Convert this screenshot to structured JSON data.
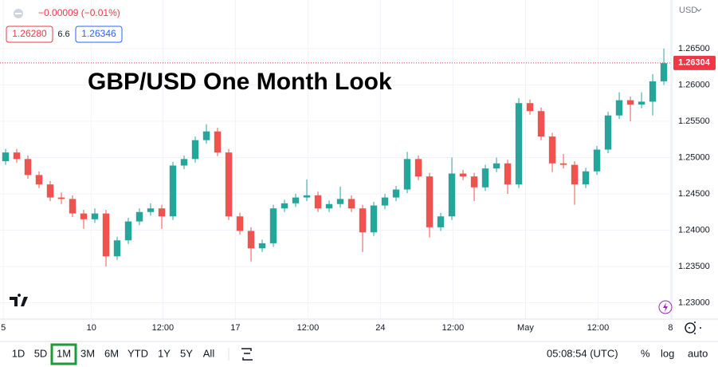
{
  "chart_data": {
    "type": "candlestick",
    "title": "GBP/USD One Month Look",
    "quote": {
      "change": "−0.00009 (−0.01%)",
      "bid": "1.26280",
      "spread": "6.6",
      "ask": "1.26346"
    },
    "currency": "USD",
    "last_price": 1.26304,
    "up_color": "#26a69a",
    "down_color": "#ef5350",
    "last_price_color": "#f23645",
    "grid": true,
    "log_scale": false,
    "x": [
      0,
      1,
      2,
      3,
      4,
      5,
      6,
      7,
      8,
      9,
      10,
      11,
      12,
      13,
      14,
      15,
      16,
      17,
      18,
      19,
      20,
      21,
      22,
      23,
      24,
      25,
      26,
      27,
      28,
      29,
      30,
      31,
      32,
      33,
      34,
      35,
      36,
      37,
      38,
      39,
      40,
      41,
      42,
      43,
      44,
      45,
      46,
      47,
      48,
      49,
      50,
      51,
      52,
      53,
      54,
      55,
      56,
      57,
      58,
      59
    ],
    "open": [
      1.2495,
      1.2507,
      1.2498,
      1.2476,
      1.2463,
      1.2445,
      1.2443,
      1.2423,
      1.2415,
      1.2423,
      1.2364,
      1.2386,
      1.2412,
      1.2425,
      1.243,
      1.2419,
      1.2489,
      1.2498,
      1.2524,
      1.2536,
      1.2507,
      1.2419,
      1.2399,
      1.2375,
      1.2382,
      1.243,
      1.2437,
      1.2445,
      1.2448,
      1.243,
      1.2436,
      1.2443,
      1.243,
      1.2397,
      1.2434,
      1.2445,
      1.2456,
      1.2498,
      1.2474,
      1.2404,
      1.2419,
      1.2478,
      1.2474,
      1.2459,
      1.2485,
      1.2492,
      1.2463,
      1.2575,
      1.2564,
      1.2529,
      1.2492,
      1.249,
      1.2463,
      1.2481,
      1.2511,
      1.2558,
      1.2579,
      1.2573,
      1.2577,
      1.2605
    ],
    "high": [
      1.2512,
      1.2512,
      1.2503,
      1.2481,
      1.2468,
      1.2452,
      1.2448,
      1.2428,
      1.243,
      1.2428,
      1.2391,
      1.2417,
      1.243,
      1.2437,
      1.2435,
      1.2494,
      1.2503,
      1.2529,
      1.2546,
      1.2541,
      1.2512,
      1.2424,
      1.2404,
      1.2387,
      1.2435,
      1.2442,
      1.245,
      1.247,
      1.2453,
      1.2441,
      1.246,
      1.2448,
      1.2435,
      1.2439,
      1.245,
      1.2461,
      1.2508,
      1.2503,
      1.2479,
      1.2424,
      1.25,
      1.2483,
      1.2479,
      1.249,
      1.25,
      1.2497,
      1.2582,
      1.258,
      1.2569,
      1.2534,
      1.2505,
      1.2495,
      1.2486,
      1.2516,
      1.2563,
      1.259,
      1.2584,
      1.259,
      1.2615,
      1.265
    ],
    "low": [
      1.249,
      1.2493,
      1.2471,
      1.2458,
      1.244,
      1.2436,
      1.2418,
      1.2402,
      1.241,
      1.235,
      1.2359,
      1.2381,
      1.2407,
      1.242,
      1.2402,
      1.2414,
      1.2484,
      1.2493,
      1.2519,
      1.2502,
      1.2414,
      1.2394,
      1.2357,
      1.237,
      1.2377,
      1.2425,
      1.2432,
      1.244,
      1.2425,
      1.2425,
      1.2431,
      1.2425,
      1.237,
      1.2392,
      1.2429,
      1.244,
      1.2451,
      1.2469,
      1.239,
      1.2399,
      1.2414,
      1.2469,
      1.244,
      1.2454,
      1.248,
      1.245,
      1.2458,
      1.2559,
      1.2524,
      1.248,
      1.2485,
      1.2435,
      1.2458,
      1.2476,
      1.2506,
      1.2553,
      1.255,
      1.2568,
      1.2558,
      1.26
    ],
    "close": [
      1.2507,
      1.2498,
      1.2476,
      1.2463,
      1.2445,
      1.2443,
      1.2423,
      1.2415,
      1.2423,
      1.2364,
      1.2386,
      1.2412,
      1.2425,
      1.243,
      1.2419,
      1.2489,
      1.2498,
      1.2524,
      1.2536,
      1.2507,
      1.2419,
      1.2399,
      1.2375,
      1.2382,
      1.243,
      1.2437,
      1.2445,
      1.2448,
      1.243,
      1.2436,
      1.2443,
      1.243,
      1.2397,
      1.2434,
      1.2445,
      1.2456,
      1.2498,
      1.2474,
      1.2404,
      1.2419,
      1.2478,
      1.2474,
      1.2459,
      1.2485,
      1.2492,
      1.2463,
      1.2575,
      1.2564,
      1.2529,
      1.2492,
      1.249,
      1.2463,
      1.2481,
      1.2511,
      1.2558,
      1.2579,
      1.2573,
      1.2577,
      1.2605,
      1.263
    ],
    "xlim": [
      -0.5,
      59.71
    ],
    "xticks": [
      {
        "value": -0.2,
        "label": "5"
      },
      {
        "value": 7.7,
        "label": "10"
      },
      {
        "value": 14.1,
        "label": "12:00"
      },
      {
        "value": 20.6,
        "label": "17"
      },
      {
        "value": 27.1,
        "label": "12:00"
      },
      {
        "value": 33.6,
        "label": "24"
      },
      {
        "value": 40.1,
        "label": "12:00"
      },
      {
        "value": 46.6,
        "label": "May"
      },
      {
        "value": 53.1,
        "label": "12:00"
      },
      {
        "value": 59.6,
        "label": "8"
      }
    ],
    "ylim": [
      1.22775,
      1.2717
    ],
    "yticks": [
      {
        "value": 1.23,
        "label": "1.23000"
      },
      {
        "value": 1.235,
        "label": "1.23500"
      },
      {
        "value": 1.24,
        "label": "1.24000"
      },
      {
        "value": 1.245,
        "label": "1.24500"
      },
      {
        "value": 1.25,
        "label": "1.25000"
      },
      {
        "value": 1.255,
        "label": "1.25500"
      },
      {
        "value": 1.26,
        "label": "1.26000"
      },
      {
        "value": 1.265,
        "label": "1.26500"
      }
    ],
    "toolbar": {
      "ranges": [
        "1D",
        "5D",
        "1M",
        "3M",
        "6M",
        "YTD",
        "1Y",
        "5Y",
        "All"
      ],
      "selected": "1M",
      "time": "05:08:54 (UTC)",
      "percent": "%",
      "log": "log",
      "auto": "auto"
    }
  }
}
